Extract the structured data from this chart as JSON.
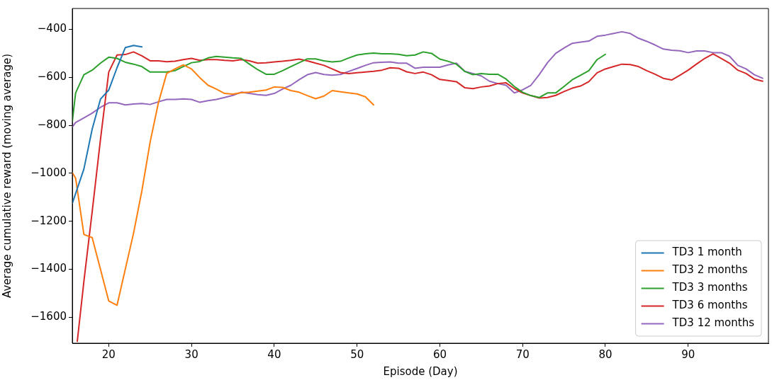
{
  "chart_data": {
    "type": "line",
    "xlabel": "Episode (Day)",
    "ylabel": "Average cumulative reward (moving average)",
    "xlim": [
      15.6,
      99.7
    ],
    "xticks": [
      20,
      30,
      40,
      50,
      60,
      70,
      80,
      90
    ],
    "ylim": [
      -1708,
      -313
    ],
    "yticks": [
      -400,
      -600,
      -800,
      -1000,
      -1200,
      -1400,
      -1600
    ],
    "grid": false,
    "legend": "bottom right",
    "marker": "none",
    "line_style": "solid",
    "series": [
      {
        "name": "TD3 1 month",
        "color": "#1f77b4",
        "x": [
          15.6,
          17,
          18,
          19,
          20,
          21,
          22,
          23,
          24
        ],
        "values": [
          -1125,
          -982,
          -816,
          -691,
          -653,
          -560,
          -476,
          -467,
          -473
        ]
      },
      {
        "name": "TD3 2 months",
        "color": "#ff7f0e",
        "x": [
          15.6,
          16,
          17,
          18,
          20,
          21,
          23,
          24,
          25,
          26,
          27,
          28,
          29,
          30,
          31,
          32,
          33,
          34,
          35,
          36,
          37,
          38,
          39,
          40,
          41,
          42,
          43,
          44,
          45,
          46,
          47,
          48,
          49,
          50,
          51,
          52
        ],
        "values": [
          -997,
          -1020,
          -1255,
          -1268,
          -1532,
          -1550,
          -1249,
          -1074,
          -870,
          -706,
          -584,
          -565,
          -548,
          -565,
          -601,
          -633,
          -649,
          -667,
          -670,
          -664,
          -662,
          -657,
          -653,
          -640,
          -642,
          -655,
          -662,
          -676,
          -689,
          -678,
          -655,
          -660,
          -665,
          -669,
          -681,
          -715
        ]
      },
      {
        "name": "TD3 3 months",
        "color": "#2ca02c",
        "x": [
          15.6,
          16,
          17,
          18,
          19,
          20,
          21,
          22,
          23,
          24,
          25,
          26,
          27,
          28,
          29,
          30,
          31,
          32,
          33,
          34,
          35,
          36,
          37,
          38,
          39,
          40,
          41,
          42,
          43,
          44,
          45,
          46,
          47,
          48,
          49,
          50,
          51,
          52,
          53,
          54,
          55,
          56,
          57,
          58,
          59,
          60,
          61,
          62,
          63,
          64,
          65,
          66,
          67,
          68,
          69,
          70,
          71,
          72,
          73,
          74,
          75,
          76,
          77,
          78,
          79,
          80
        ],
        "values": [
          -784,
          -665,
          -589,
          -570,
          -541,
          -516,
          -521,
          -537,
          -545,
          -555,
          -578,
          -578,
          -578,
          -572,
          -555,
          -539,
          -534,
          -519,
          -513,
          -516,
          -519,
          -521,
          -545,
          -568,
          -587,
          -587,
          -572,
          -555,
          -539,
          -523,
          -523,
          -531,
          -536,
          -533,
          -519,
          -507,
          -502,
          -499,
          -502,
          -502,
          -504,
          -510,
          -507,
          -494,
          -500,
          -524,
          -533,
          -545,
          -575,
          -589,
          -584,
          -587,
          -587,
          -607,
          -638,
          -662,
          -676,
          -684,
          -665,
          -665,
          -638,
          -610,
          -591,
          -572,
          -526,
          -504
        ]
      },
      {
        "name": "TD3 6 months",
        "color": "#d62728",
        "x": [
          16.2,
          17,
          18,
          19,
          20,
          21,
          22,
          23,
          24,
          25,
          26,
          27,
          28,
          29,
          30,
          31,
          32,
          33,
          34,
          35,
          36,
          37,
          38,
          39,
          40,
          41,
          42,
          43,
          44,
          45,
          46,
          47,
          48,
          49,
          50,
          51,
          52,
          53,
          54,
          55,
          56,
          57,
          58,
          59,
          60,
          61,
          62,
          63,
          64,
          65,
          66,
          67,
          68,
          69,
          70,
          71,
          72,
          73,
          74,
          75,
          76,
          77,
          78,
          79,
          80,
          81,
          82,
          83,
          84,
          85,
          86,
          87,
          88,
          89,
          90,
          91,
          92,
          93,
          94,
          95,
          96,
          97,
          98,
          99
        ],
        "values": [
          -1700,
          -1450,
          -1160,
          -860,
          -578,
          -507,
          -505,
          -494,
          -510,
          -531,
          -531,
          -535,
          -533,
          -526,
          -521,
          -529,
          -526,
          -526,
          -529,
          -531,
          -526,
          -531,
          -541,
          -539,
          -536,
          -533,
          -529,
          -524,
          -531,
          -541,
          -550,
          -565,
          -580,
          -584,
          -581,
          -578,
          -575,
          -570,
          -560,
          -562,
          -577,
          -584,
          -578,
          -589,
          -609,
          -613,
          -618,
          -643,
          -647,
          -640,
          -636,
          -626,
          -623,
          -647,
          -665,
          -676,
          -686,
          -684,
          -675,
          -659,
          -645,
          -636,
          -618,
          -581,
          -565,
          -555,
          -545,
          -547,
          -555,
          -572,
          -587,
          -604,
          -611,
          -591,
          -570,
          -545,
          -521,
          -502,
          -521,
          -541,
          -570,
          -584,
          -607,
          -616
        ]
      },
      {
        "name": "TD3 12 months",
        "color": "#9467bd",
        "x": [
          15.6,
          16,
          17,
          18,
          19,
          20,
          21,
          22,
          23,
          24,
          25,
          26,
          27,
          28,
          29,
          30,
          31,
          32,
          33,
          34,
          35,
          36,
          37,
          38,
          39,
          40,
          41,
          42,
          43,
          44,
          45,
          46,
          47,
          48,
          49,
          50,
          51,
          52,
          53,
          54,
          55,
          56,
          57,
          58,
          59,
          60,
          61,
          62,
          63,
          64,
          65,
          66,
          67,
          68,
          69,
          70,
          71,
          72,
          73,
          74,
          75,
          76,
          77,
          78,
          79,
          80,
          81,
          82,
          83,
          84,
          85,
          86,
          87,
          88,
          89,
          90,
          91,
          92,
          93,
          94,
          95,
          96,
          97,
          98,
          99
        ],
        "values": [
          -807,
          -788,
          -769,
          -749,
          -725,
          -706,
          -706,
          -715,
          -711,
          -709,
          -713,
          -702,
          -692,
          -692,
          -690,
          -692,
          -704,
          -697,
          -692,
          -684,
          -675,
          -662,
          -667,
          -672,
          -675,
          -667,
          -649,
          -633,
          -610,
          -589,
          -580,
          -588,
          -591,
          -588,
          -575,
          -563,
          -550,
          -539,
          -537,
          -536,
          -541,
          -541,
          -562,
          -558,
          -558,
          -558,
          -548,
          -541,
          -575,
          -584,
          -594,
          -616,
          -626,
          -633,
          -665,
          -652,
          -633,
          -589,
          -539,
          -500,
          -478,
          -458,
          -453,
          -449,
          -429,
          -424,
          -417,
          -410,
          -417,
          -437,
          -450,
          -465,
          -482,
          -487,
          -489,
          -497,
          -490,
          -490,
          -497,
          -497,
          -512,
          -550,
          -565,
          -589,
          -604
        ]
      }
    ]
  }
}
